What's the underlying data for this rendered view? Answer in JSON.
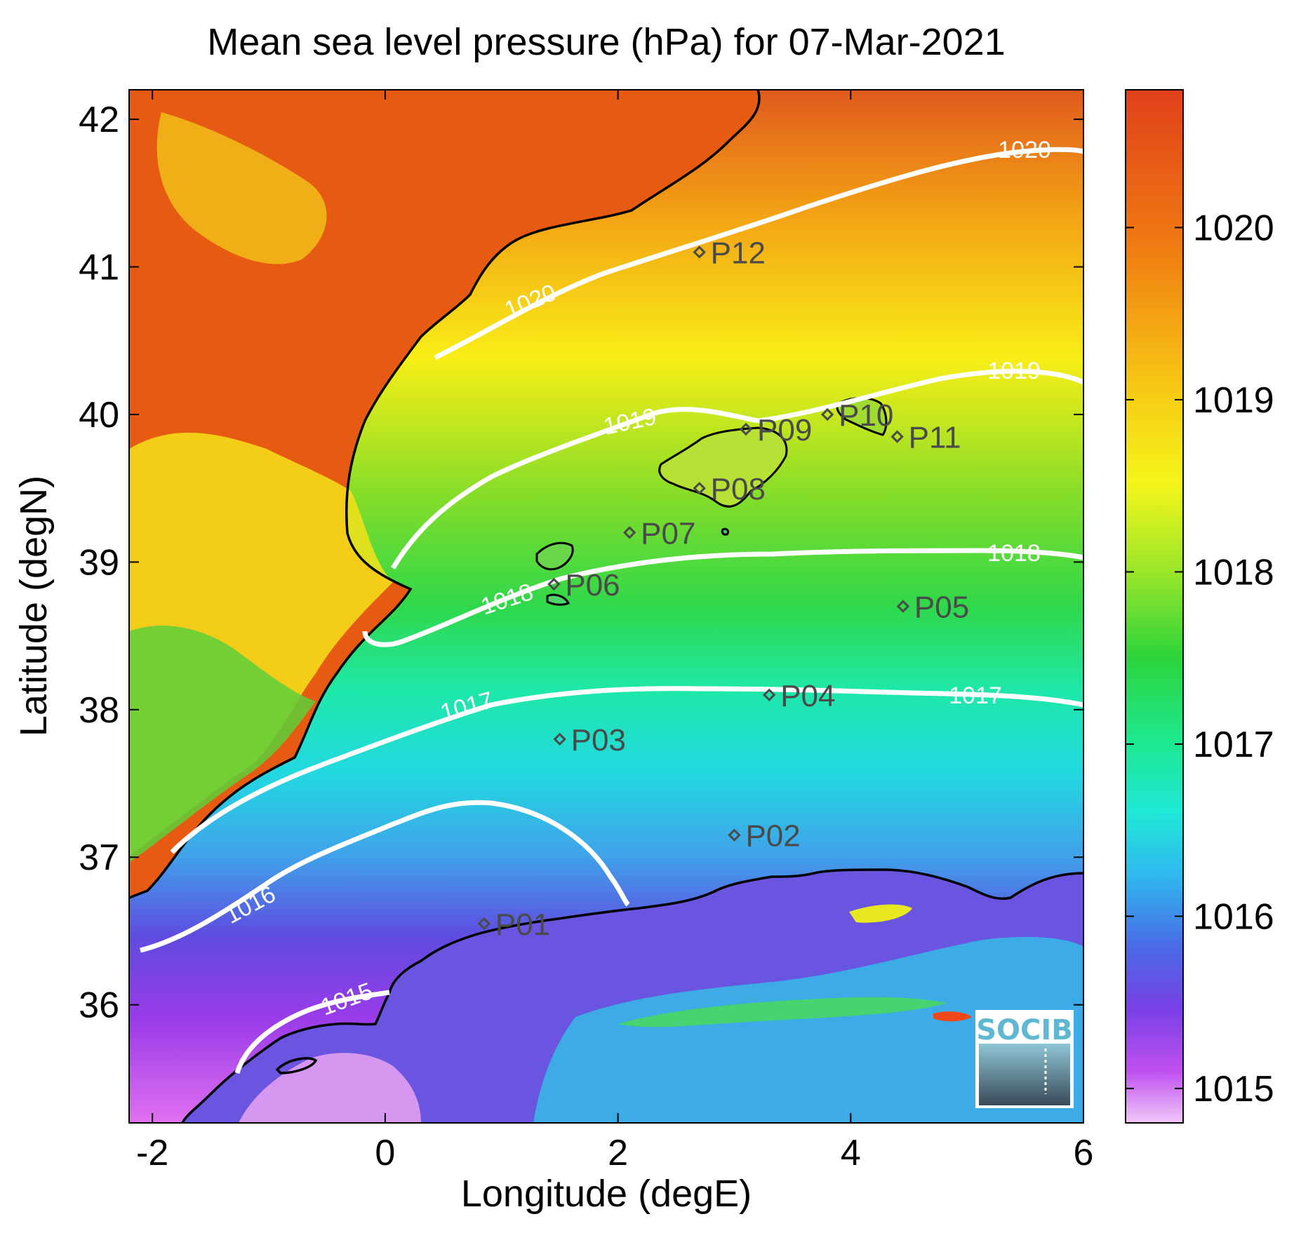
{
  "title": "Mean sea level pressure (hPa) for 07-Mar-2021",
  "xlabel": "Longitude (degE)",
  "ylabel": "Latitude (degN)",
  "x_ticks": [
    "-2",
    "0",
    "2",
    "4",
    "6"
  ],
  "y_ticks": [
    "42",
    "41",
    "40",
    "39",
    "38",
    "37",
    "36"
  ],
  "colorbar_ticks": [
    "1020",
    "1019",
    "1018",
    "1017",
    "1016",
    "1015"
  ],
  "contour_labels": [
    "1020",
    "1020",
    "1019",
    "1019",
    "1018",
    "1018",
    "1017",
    "1017",
    "1016",
    "1015"
  ],
  "logo": "SOCIB",
  "points": [
    {
      "label": "P01",
      "lon": 0.85,
      "lat": 36.55
    },
    {
      "label": "P02",
      "lon": 3.0,
      "lat": 37.15
    },
    {
      "label": "P03",
      "lon": 1.5,
      "lat": 37.8
    },
    {
      "label": "P04",
      "lon": 3.3,
      "lat": 38.1
    },
    {
      "label": "P05",
      "lon": 4.45,
      "lat": 38.7
    },
    {
      "label": "P06",
      "lon": 1.45,
      "lat": 38.85
    },
    {
      "label": "P07",
      "lon": 2.1,
      "lat": 39.2
    },
    {
      "label": "P08",
      "lon": 2.7,
      "lat": 39.5
    },
    {
      "label": "P09",
      "lon": 3.1,
      "lat": 39.9
    },
    {
      "label": "P10",
      "lon": 3.8,
      "lat": 40.0
    },
    {
      "label": "P11",
      "lon": 4.4,
      "lat": 39.85
    },
    {
      "label": "P12",
      "lon": 2.7,
      "lat": 41.1
    }
  ],
  "chart_data": {
    "type": "heatmap",
    "title": "Mean sea level pressure (hPa) for 07-Mar-2021",
    "xlabel": "Longitude (degE)",
    "ylabel": "Latitude (degN)",
    "xlim": [
      -2.2,
      6.0
    ],
    "ylim": [
      35.2,
      42.2
    ],
    "colorbar_range": [
      1014.8,
      1020.8
    ],
    "contour_levels": [
      1015,
      1016,
      1017,
      1018,
      1019,
      1020
    ]
  }
}
